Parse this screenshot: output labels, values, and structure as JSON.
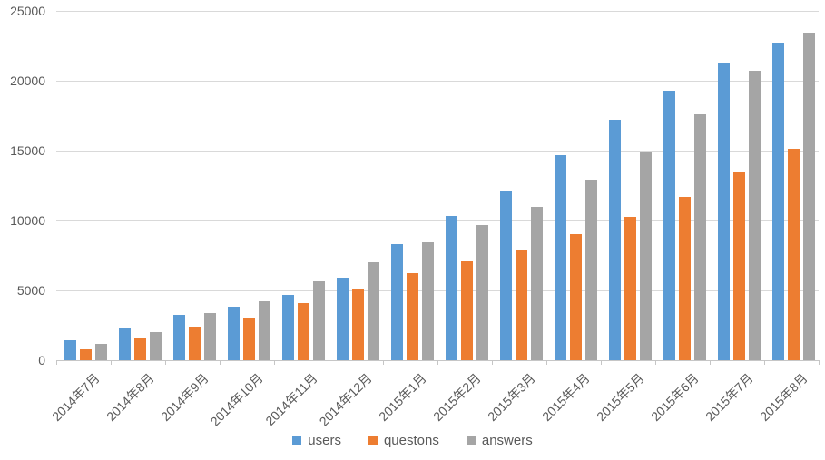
{
  "chart_data": {
    "type": "bar",
    "title": "",
    "categories": [
      "2014年7月",
      "2014年8月",
      "2014年9月",
      "2014年10月",
      "2014年11月",
      "2014年12月",
      "2015年1月",
      "2015年2月",
      "2015年3月",
      "2015年4月",
      "2015年5月",
      "2015年6月",
      "2015年7月",
      "2015年8月"
    ],
    "series": [
      {
        "name": "users",
        "color": "#5B9BD5",
        "values": [
          1400,
          2300,
          3250,
          3850,
          4700,
          5900,
          8300,
          10350,
          12100,
          14650,
          17200,
          19300,
          21300,
          22700
        ]
      },
      {
        "name": "questons",
        "color": "#ED7D31",
        "values": [
          800,
          1600,
          2400,
          3050,
          4100,
          5150,
          6250,
          7050,
          7900,
          9000,
          10250,
          11700,
          13450,
          15100
        ]
      },
      {
        "name": "answers",
        "color": "#A5A5A5",
        "values": [
          1150,
          2000,
          3350,
          4250,
          5650,
          7000,
          8450,
          9650,
          11000,
          12900,
          14850,
          17600,
          20700,
          23450
        ]
      }
    ],
    "xlabel": "",
    "ylabel": "",
    "ylim": [
      0,
      25000
    ],
    "yticks": [
      0,
      5000,
      10000,
      15000,
      20000,
      25000
    ],
    "grid": true,
    "legend_position": "bottom",
    "colors": {
      "grid": "#d9d9d9",
      "axis": "#c6c6c6",
      "tick_text": "#595959"
    }
  }
}
